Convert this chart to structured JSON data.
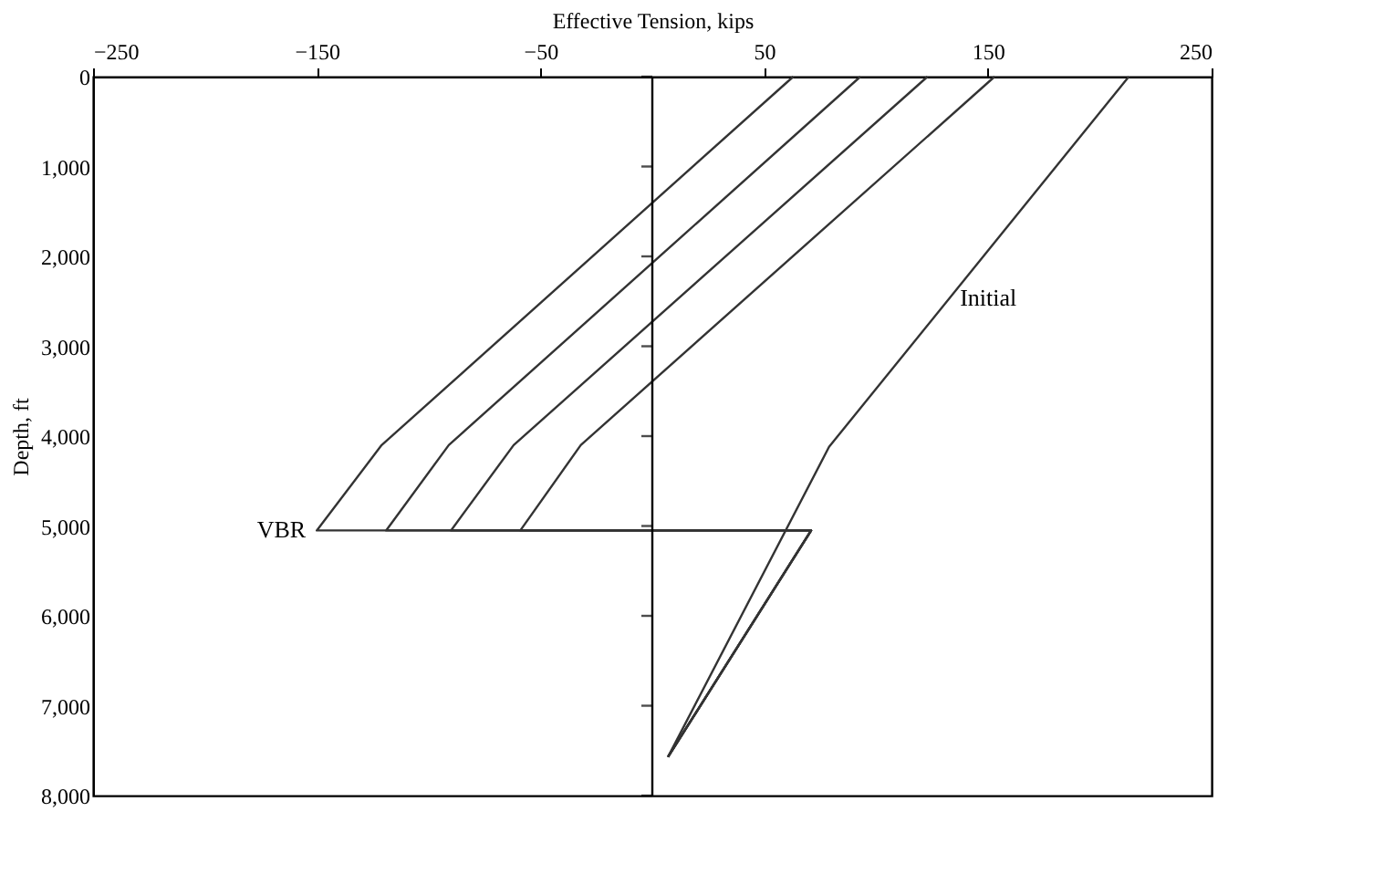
{
  "chart_data": {
    "type": "line",
    "xlabel": "Effective Tension, kips",
    "ylabel": "Depth, ft",
    "xlim": [
      -250,
      250
    ],
    "xticks": [
      -250,
      -150,
      -50,
      50,
      150,
      250
    ],
    "ylim": [
      8000,
      0
    ],
    "yticks": [
      0,
      {
        "value": 1000,
        "label": "1,000"
      },
      {
        "value": 2000,
        "label": "2,000"
      },
      {
        "value": 3000,
        "label": "3,000"
      },
      {
        "value": 4000,
        "label": "4,000"
      },
      {
        "value": 5000,
        "label": "5,000"
      },
      {
        "value": 6000,
        "label": "6,000"
      },
      {
        "value": 7000,
        "label": "7,000"
      },
      {
        "value": 8000,
        "label": "8,000"
      }
    ],
    "grid": false,
    "legend": false,
    "marker": "none",
    "line_style": "solid",
    "series": [
      {
        "name": "Initial",
        "color": "#333333",
        "x": [
          213,
          79,
          7
        ],
        "values": [
          0,
          4120,
          7570
        ]
      },
      {
        "color": "#333333",
        "x": [
          153,
          -32,
          -59,
          71,
          7
        ],
        "values": [
          0,
          4100,
          5050,
          5050,
          7570
        ]
      },
      {
        "color": "#333333",
        "x": [
          123,
          -62,
          -90,
          71,
          7
        ],
        "values": [
          0,
          4100,
          5050,
          5050,
          7570
        ]
      },
      {
        "color": "#333333",
        "x": [
          93,
          -91,
          -119,
          71,
          7
        ],
        "values": [
          0,
          4100,
          5050,
          5050,
          7570
        ]
      },
      {
        "color": "#333333",
        "x": [
          63,
          -121,
          -150,
          71,
          7
        ],
        "values": [
          0,
          4100,
          5050,
          5050,
          7570
        ]
      }
    ],
    "ref_lines": [
      {
        "axis": "x",
        "value": 0,
        "color": "#000000"
      }
    ],
    "annotations": [
      {
        "text": "VBR",
        "x": -150,
        "y": 5050
      }
    ]
  }
}
